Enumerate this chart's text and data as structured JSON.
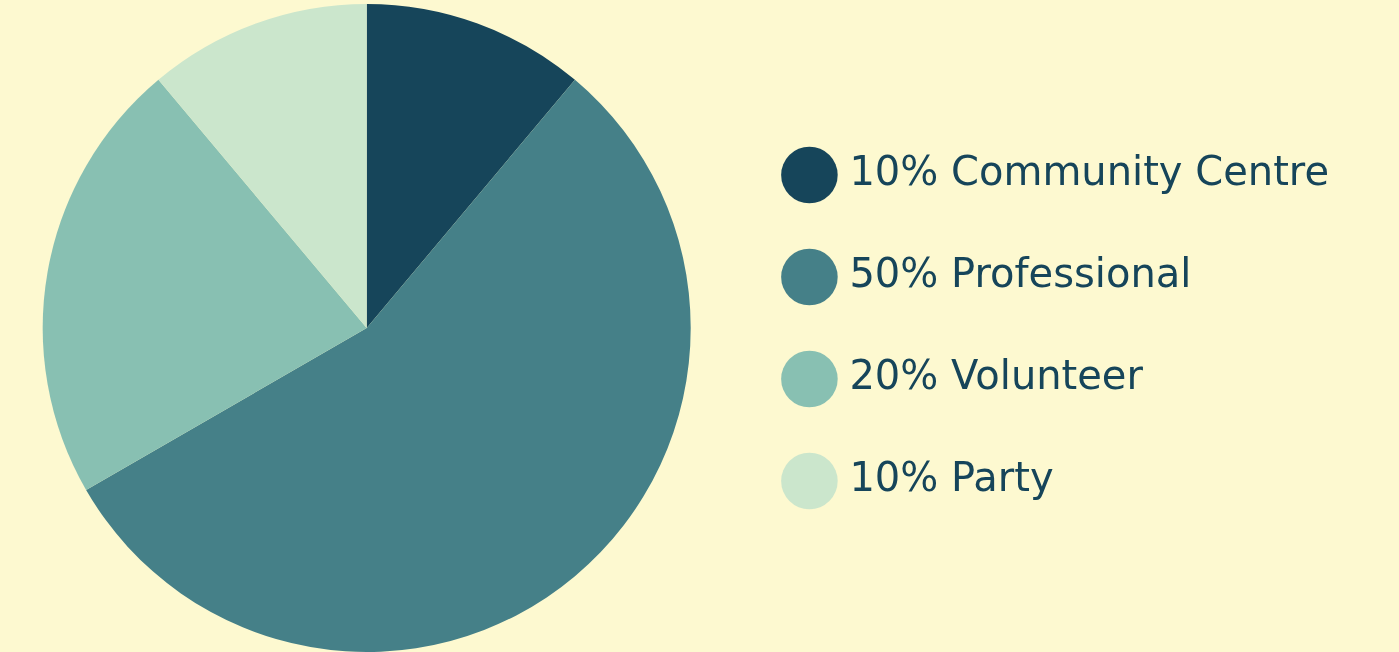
{
  "chart_data": {
    "type": "pie",
    "categories": [
      "Community Centre",
      "Professional",
      "Volunteer",
      "Party"
    ],
    "values": [
      10,
      50,
      20,
      10
    ],
    "value_labels": [
      "10%",
      "50%",
      "20%",
      "10%"
    ],
    "colors": [
      "#16455a",
      "#458088",
      "#88c0b2",
      "#cbe6cc"
    ],
    "legend": "right"
  }
}
